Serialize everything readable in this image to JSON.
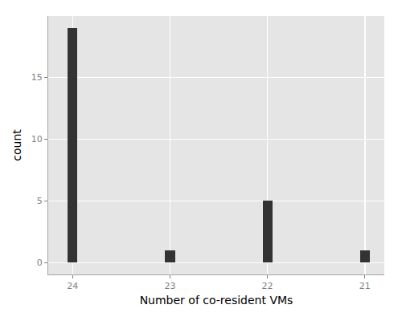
{
  "chart_data": {
    "type": "bar",
    "x_label": "Number of co-resident VMs",
    "y_label": "count",
    "x": [
      24,
      23,
      22,
      21
    ],
    "values": [
      19,
      1,
      5,
      1
    ],
    "color": "#333333",
    "xlim": [
      24.25,
      20.8
    ],
    "xticks": [
      24,
      23,
      22,
      21
    ],
    "ylim": [
      -0.95,
      19.95
    ],
    "yticks": [
      0,
      5,
      10,
      15
    ],
    "grid": true
  }
}
